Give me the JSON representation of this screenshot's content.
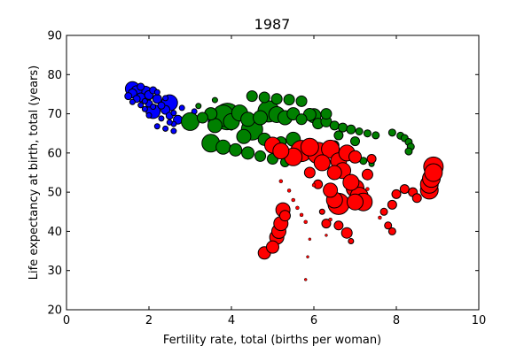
{
  "chart_data": {
    "type": "scatter",
    "title": "1987",
    "xlabel": "Fertility rate, total (births per woman)",
    "ylabel": "Life expectancy at birth, total (years)",
    "xlim": [
      0,
      10
    ],
    "ylim": [
      20,
      90
    ],
    "xticks": [
      "0",
      "2",
      "4",
      "6",
      "8",
      "10"
    ],
    "yticks": [
      "20",
      "30",
      "40",
      "50",
      "60",
      "70",
      "80",
      "90"
    ],
    "grid": false,
    "legend": "none",
    "point_edge_color": "#000000",
    "series": [
      {
        "color": "#0000ff",
        "points": [
          [
            1.5,
            74.5,
            4
          ],
          [
            1.6,
            75.2,
            5
          ],
          [
            1.6,
            76.4,
            8
          ],
          [
            1.7,
            73.8,
            4
          ],
          [
            1.7,
            75.8,
            6
          ],
          [
            1.8,
            74.2,
            5
          ],
          [
            1.8,
            76.9,
            4
          ],
          [
            1.9,
            75.0,
            9
          ],
          [
            1.9,
            73.2,
            3
          ],
          [
            2.0,
            72.6,
            4
          ],
          [
            2.0,
            74.8,
            5
          ],
          [
            2.1,
            76.0,
            4
          ],
          [
            2.1,
            71.8,
            3
          ],
          [
            2.1,
            70.6,
            8
          ],
          [
            2.2,
            73.8,
            5
          ],
          [
            2.2,
            75.5,
            3
          ],
          [
            2.3,
            72.1,
            4
          ],
          [
            2.3,
            68.8,
            3
          ],
          [
            2.4,
            71.0,
            5
          ],
          [
            2.4,
            74.0,
            3
          ],
          [
            2.5,
            69.5,
            4
          ],
          [
            2.5,
            72.8,
            9
          ],
          [
            2.6,
            70.2,
            3
          ],
          [
            2.6,
            67.4,
            3
          ],
          [
            2.7,
            68.5,
            5
          ],
          [
            2.8,
            71.5,
            3
          ],
          [
            2.9,
            66.8,
            3
          ],
          [
            2.5,
            67.8,
            3
          ],
          [
            1.8,
            72.2,
            3
          ],
          [
            2.0,
            69.6,
            3
          ],
          [
            2.2,
            66.8,
            3
          ],
          [
            2.4,
            66.2,
            3
          ],
          [
            2.6,
            65.6,
            3
          ],
          [
            1.6,
            73.0,
            3
          ],
          [
            1.9,
            71.2,
            3
          ],
          [
            3.1,
            70.6,
            3
          ],
          [
            3.3,
            69.4,
            3
          ],
          [
            3.5,
            68.0,
            3
          ],
          [
            3.7,
            68.8,
            3
          ],
          [
            4.0,
            66.5,
            3
          ]
        ]
      },
      {
        "color": "#008000",
        "points": [
          [
            3.0,
            68.0,
            10
          ],
          [
            3.3,
            69.0,
            6
          ],
          [
            3.5,
            70.0,
            7
          ],
          [
            3.6,
            67.0,
            8
          ],
          [
            3.8,
            69.5,
            12
          ],
          [
            3.9,
            69.3,
            15
          ],
          [
            4.0,
            68.0,
            9
          ],
          [
            4.2,
            70.2,
            9
          ],
          [
            4.4,
            68.6,
            8
          ],
          [
            4.5,
            66.0,
            12
          ],
          [
            4.7,
            69.0,
            8
          ],
          [
            4.9,
            70.6,
            12
          ],
          [
            5.1,
            69.8,
            9
          ],
          [
            5.3,
            69.0,
            8
          ],
          [
            5.5,
            70.0,
            7
          ],
          [
            5.7,
            68.6,
            6
          ],
          [
            5.9,
            69.8,
            7
          ],
          [
            6.1,
            67.5,
            6
          ],
          [
            6.3,
            68.0,
            6
          ],
          [
            6.5,
            67.0,
            5
          ],
          [
            6.7,
            66.5,
            5
          ],
          [
            6.9,
            66.0,
            5
          ],
          [
            7.1,
            65.5,
            4
          ],
          [
            7.3,
            65.0,
            4
          ],
          [
            7.5,
            64.5,
            4
          ],
          [
            4.5,
            74.5,
            6
          ],
          [
            4.8,
            74.2,
            6
          ],
          [
            5.1,
            73.8,
            6
          ],
          [
            5.4,
            73.6,
            6
          ],
          [
            5.7,
            73.2,
            6
          ],
          [
            3.5,
            62.5,
            10
          ],
          [
            3.8,
            61.5,
            8
          ],
          [
            4.1,
            60.8,
            7
          ],
          [
            4.4,
            60.0,
            7
          ],
          [
            4.7,
            59.2,
            6
          ],
          [
            5.0,
            58.5,
            6
          ],
          [
            5.3,
            57.6,
            5
          ],
          [
            4.3,
            64.2,
            8
          ],
          [
            4.8,
            63.5,
            7
          ],
          [
            5.2,
            62.8,
            6
          ],
          [
            5.5,
            63.5,
            8
          ],
          [
            5.7,
            61.0,
            5
          ],
          [
            6.0,
            69.5,
            8
          ],
          [
            6.3,
            70.0,
            6
          ],
          [
            6.5,
            62.0,
            5
          ],
          [
            7.0,
            59.5,
            4
          ],
          [
            7.2,
            58.0,
            4
          ],
          [
            7.4,
            57.2,
            3
          ],
          [
            7.0,
            63.0,
            5
          ],
          [
            6.6,
            64.5,
            5
          ],
          [
            7.9,
            65.2,
            4
          ],
          [
            8.1,
            64.4,
            4
          ],
          [
            8.2,
            63.8,
            4
          ],
          [
            8.3,
            62.8,
            4
          ],
          [
            8.35,
            61.6,
            4
          ],
          [
            8.3,
            60.4,
            4
          ],
          [
            5.0,
            61.8,
            6
          ],
          [
            3.6,
            73.5,
            3
          ],
          [
            3.2,
            72.0,
            3
          ]
        ]
      },
      {
        "color": "#ff0000",
        "points": [
          [
            4.8,
            34.5,
            7
          ],
          [
            5.0,
            36.0,
            7
          ],
          [
            5.1,
            38.5,
            8
          ],
          [
            5.15,
            40.0,
            8
          ],
          [
            5.2,
            42.0,
            8
          ],
          [
            5.25,
            45.5,
            8
          ],
          [
            5.3,
            44.0,
            6
          ],
          [
            5.0,
            62.0,
            9
          ],
          [
            5.2,
            60.5,
            9
          ],
          [
            5.5,
            59.0,
            10
          ],
          [
            5.7,
            60.5,
            12
          ],
          [
            5.9,
            61.5,
            10
          ],
          [
            6.1,
            60.0,
            12
          ],
          [
            6.2,
            57.5,
            9
          ],
          [
            6.4,
            61.0,
            10
          ],
          [
            6.5,
            55.0,
            8
          ],
          [
            6.6,
            58.0,
            9
          ],
          [
            6.7,
            55.5,
            9
          ],
          [
            6.8,
            60.0,
            9
          ],
          [
            6.9,
            52.5,
            9
          ],
          [
            7.0,
            51.0,
            10
          ],
          [
            7.1,
            49.0,
            10
          ],
          [
            7.2,
            47.5,
            10
          ],
          [
            6.4,
            50.5,
            8
          ],
          [
            6.5,
            48.0,
            9
          ],
          [
            6.6,
            47.0,
            12
          ],
          [
            7.0,
            47.5,
            9
          ],
          [
            6.3,
            42.0,
            5
          ],
          [
            6.6,
            41.5,
            5
          ],
          [
            6.8,
            39.6,
            6
          ],
          [
            7.3,
            54.5,
            6
          ],
          [
            7.0,
            59.0,
            7
          ],
          [
            7.4,
            58.5,
            5
          ],
          [
            6.1,
            52.0,
            5
          ],
          [
            5.9,
            55.0,
            6
          ],
          [
            8.0,
            49.5,
            5
          ],
          [
            8.2,
            50.8,
            5
          ],
          [
            8.4,
            50.0,
            5
          ],
          [
            8.5,
            48.5,
            5
          ],
          [
            7.9,
            46.8,
            5
          ],
          [
            7.9,
            40.0,
            4
          ],
          [
            7.8,
            41.5,
            4
          ],
          [
            8.8,
            50.5,
            10
          ],
          [
            8.8,
            52.0,
            10
          ],
          [
            8.85,
            53.5,
            10
          ],
          [
            8.9,
            55.0,
            10
          ],
          [
            8.9,
            56.5,
            11
          ],
          [
            7.7,
            45.0,
            4
          ],
          [
            6.9,
            37.5,
            3
          ],
          [
            6.2,
            45.0,
            3
          ]
        ]
      },
      {
        "color": "#ff0000",
        "edge": "#000000",
        "points": [
          [
            5.2,
            52.8,
            2
          ],
          [
            5.4,
            50.4,
            2
          ],
          [
            5.5,
            48.0,
            2
          ],
          [
            5.6,
            46.0,
            2
          ],
          [
            5.7,
            44.2,
            2
          ],
          [
            5.8,
            42.4,
            2
          ],
          [
            5.9,
            38.0,
            1.5
          ],
          [
            5.85,
            33.5,
            1.5
          ],
          [
            5.8,
            27.7,
            1.5
          ],
          [
            6.3,
            39.0,
            1.5
          ],
          [
            6.4,
            43.0,
            2
          ],
          [
            7.6,
            43.5,
            2
          ],
          [
            7.3,
            50.8,
            2
          ],
          [
            6.0,
            51.8,
            2
          ]
        ]
      }
    ]
  }
}
